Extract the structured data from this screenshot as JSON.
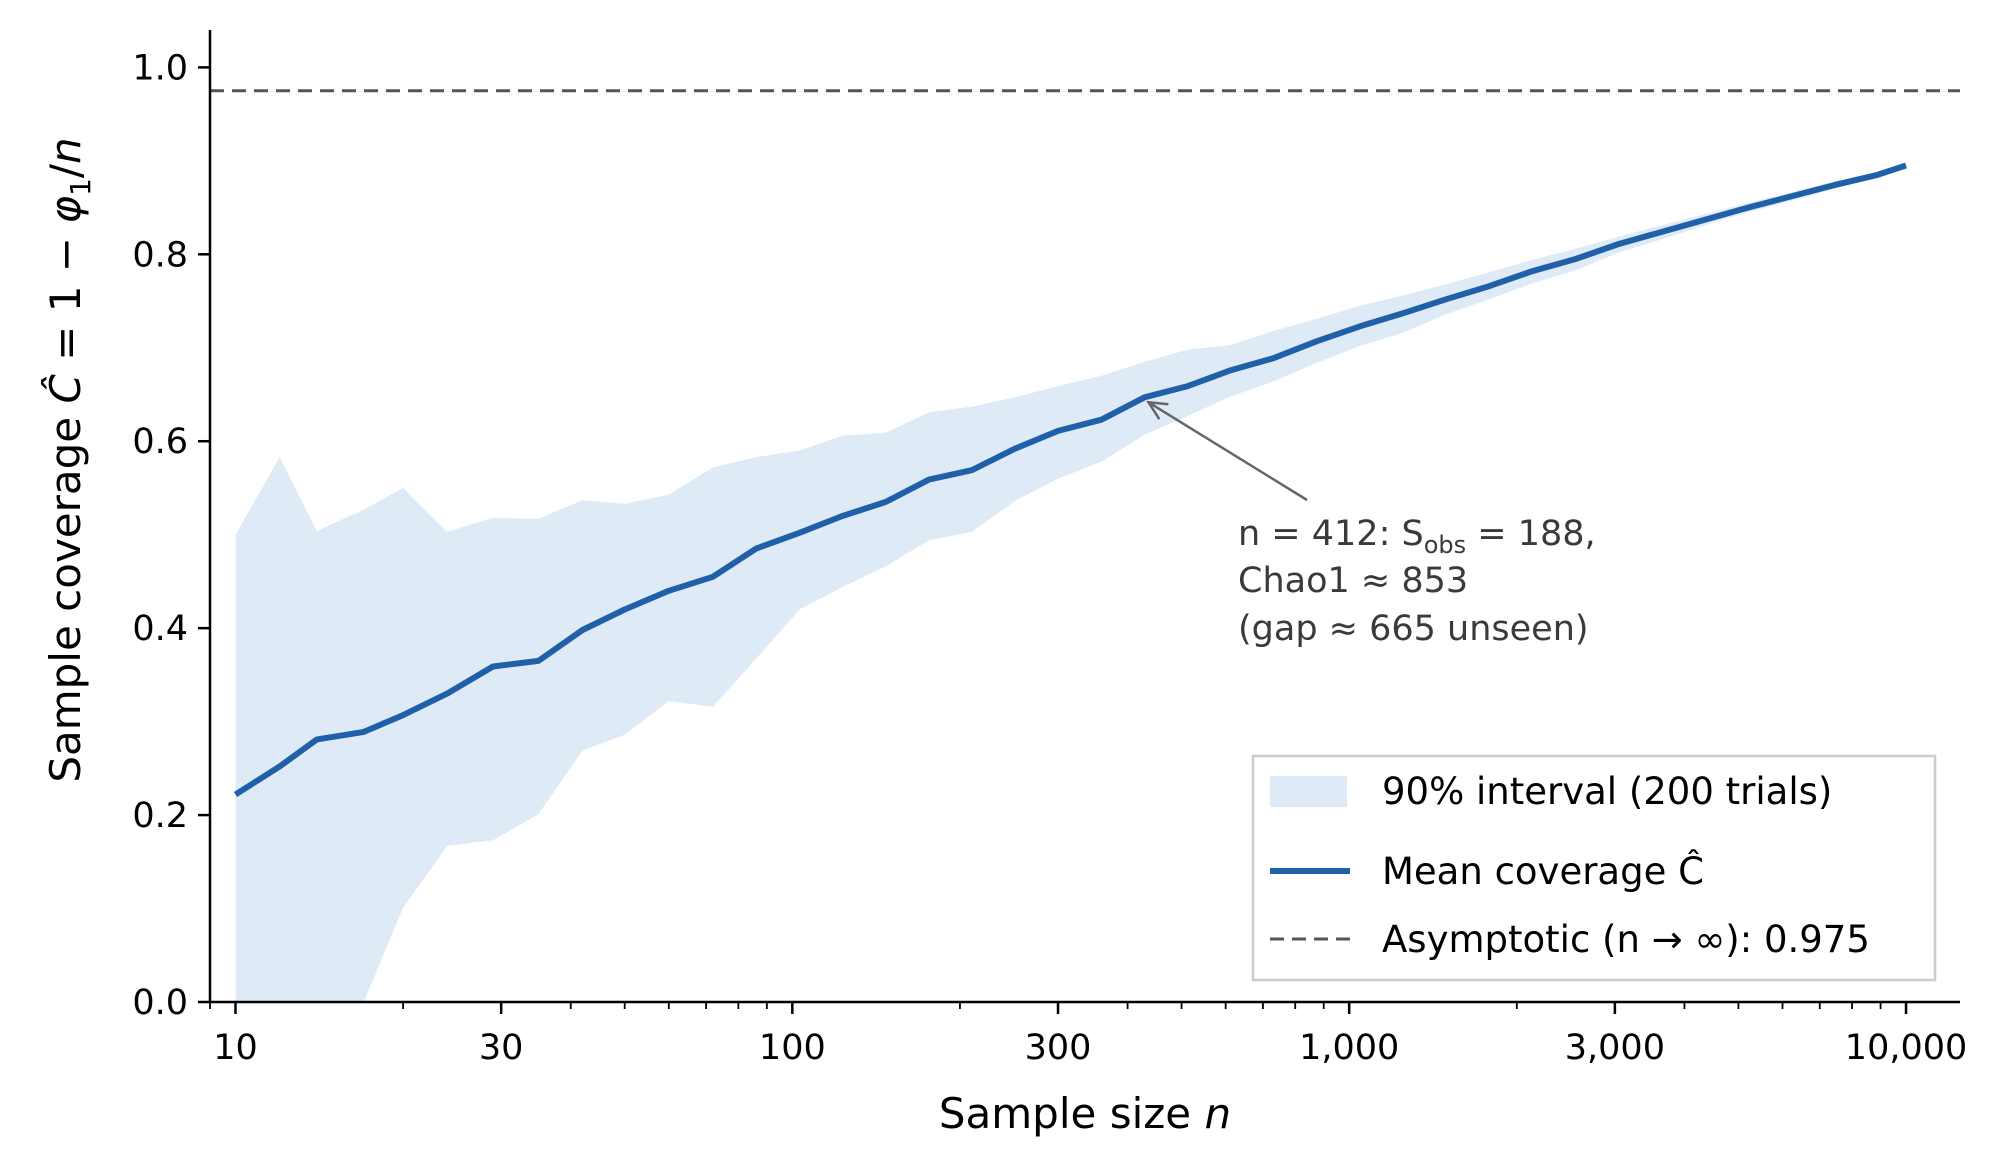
{
  "chart_data": {
    "type": "line",
    "title": "",
    "xlabel": "Sample size",
    "xlabel_var": "n",
    "ylabel_parts": [
      "Sample coverage ",
      "Ĉ",
      " = 1 − ",
      "φ",
      "1",
      "/",
      "n"
    ],
    "x_scale": "log",
    "xlim": [
      9,
      12500
    ],
    "ylim": [
      0.0,
      1.04
    ],
    "x_ticks": [
      10,
      30,
      100,
      300,
      1000,
      3000,
      10000
    ],
    "x_tick_labels": [
      "10",
      "30",
      "100",
      "300",
      "1,000",
      "3,000",
      "10,000"
    ],
    "y_ticks": [
      0.0,
      0.2,
      0.4,
      0.6,
      0.8,
      1.0
    ],
    "y_tick_labels": [
      "0.0",
      "0.2",
      "0.4",
      "0.6",
      "0.8",
      "1.0"
    ],
    "grid": false,
    "legend_position": "lower-right",
    "x": [
      10,
      12,
      14,
      17,
      20,
      24,
      29,
      35,
      42,
      50,
      60,
      72,
      86,
      103,
      123,
      147,
      176,
      210,
      251,
      300,
      359,
      429,
      513,
      613,
      732,
      875,
      1046,
      1250,
      1494,
      1786,
      2134,
      2550,
      3048,
      3643,
      4354,
      5203,
      6218,
      7432,
      8881,
      10000
    ],
    "series": [
      {
        "name": "Mean coverage Ĉ",
        "color": "#2060a8",
        "values": [
          0.222,
          0.252,
          0.281,
          0.289,
          0.307,
          0.33,
          0.359,
          0.365,
          0.398,
          0.42,
          0.44,
          0.455,
          0.485,
          0.502,
          0.52,
          0.535,
          0.559,
          0.569,
          0.592,
          0.611,
          0.623,
          0.647,
          0.659,
          0.676,
          0.689,
          0.707,
          0.723,
          0.737,
          0.752,
          0.766,
          0.782,
          0.795,
          0.811,
          0.824,
          0.837,
          0.85,
          0.862,
          0.874,
          0.885,
          0.895
        ]
      }
    ],
    "band": {
      "name": "90% interval (200 trials)",
      "color": "#deebf7",
      "lower": [
        0.0,
        0.0,
        0.0,
        0.0,
        0.101,
        0.167,
        0.173,
        0.201,
        0.269,
        0.286,
        0.322,
        0.316,
        0.367,
        0.42,
        0.444,
        0.466,
        0.494,
        0.503,
        0.536,
        0.56,
        0.578,
        0.607,
        0.627,
        0.648,
        0.664,
        0.684,
        0.702,
        0.716,
        0.736,
        0.752,
        0.769,
        0.783,
        0.802,
        0.816,
        0.831,
        0.845,
        0.857,
        0.87,
        0.882,
        0.893
      ],
      "upper": [
        0.5,
        0.583,
        0.504,
        0.527,
        0.55,
        0.503,
        0.518,
        0.517,
        0.537,
        0.533,
        0.543,
        0.572,
        0.583,
        0.59,
        0.606,
        0.609,
        0.631,
        0.637,
        0.647,
        0.659,
        0.67,
        0.685,
        0.698,
        0.703,
        0.718,
        0.731,
        0.745,
        0.756,
        0.768,
        0.781,
        0.794,
        0.806,
        0.819,
        0.831,
        0.843,
        0.855,
        0.866,
        0.878,
        0.888,
        0.897
      ]
    },
    "asymptote": {
      "name": "Asymptotic (n → ∞): 0.975",
      "value": 0.975,
      "color": "#555555"
    },
    "annotation": {
      "target_x": 429,
      "target_y": 0.647,
      "line1": "n = 412: S",
      "line1_sub": "obs",
      "line1_end": " = 188,",
      "line2": "Chao1  ≈ 853",
      "line3": "(gap  ≈ 665 unseen)"
    },
    "legend": {
      "band_label": "90% interval (200 trials)",
      "line_label": "Mean coverage Ĉ",
      "asym_label": "Asymptotic (n → ∞): 0.975"
    }
  }
}
